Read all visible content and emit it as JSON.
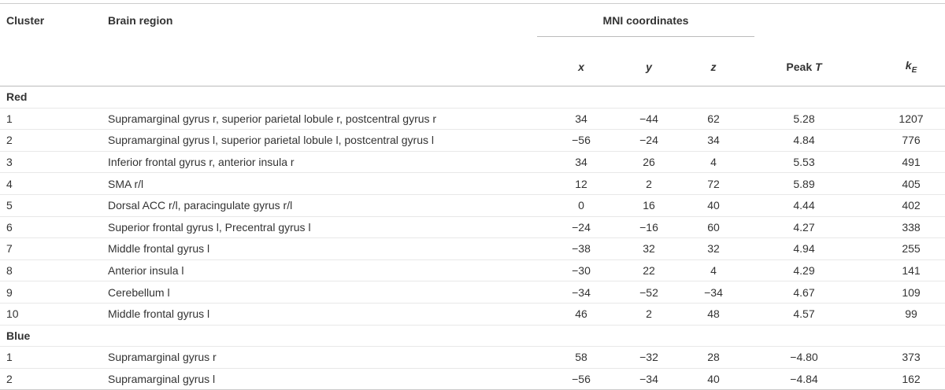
{
  "table": {
    "headers": {
      "cluster": "Cluster",
      "region": "Brain region",
      "mni": "MNI coordinates",
      "x": "x",
      "y": "y",
      "z": "z",
      "peak": [
        "Peak",
        "T"
      ],
      "ke": [
        "k",
        "E"
      ]
    },
    "groups": [
      {
        "name": "Red",
        "rows": [
          [
            "1",
            "Supramarginal gyrus r, superior parietal lobule r, postcentral gyrus r",
            "34",
            "−44",
            "62",
            "5.28",
            "1207"
          ],
          [
            "2",
            "Supramarginal gyrus l, superior parietal lobule l, postcentral gyrus l",
            "−56",
            "−24",
            "34",
            "4.84",
            "776"
          ],
          [
            "3",
            "Inferior frontal gyrus r, anterior insula r",
            "34",
            "26",
            "4",
            "5.53",
            "491"
          ],
          [
            "4",
            "SMA r/l",
            "12",
            "2",
            "72",
            "5.89",
            "405"
          ],
          [
            "5",
            "Dorsal ACC r/l, paracingulate gyrus r/l",
            "0",
            "16",
            "40",
            "4.44",
            "402"
          ],
          [
            "6",
            "Superior frontal gyrus l, Precentral gyrus l",
            "−24",
            "−16",
            "60",
            "4.27",
            "338"
          ],
          [
            "7",
            "Middle frontal gyrus l",
            "−38",
            "32",
            "32",
            "4.94",
            "255"
          ],
          [
            "8",
            "Anterior insula l",
            "−30",
            "22",
            "4",
            "4.29",
            "141"
          ],
          [
            "9",
            "Cerebellum l",
            "−34",
            "−52",
            "−34",
            "4.67",
            "109"
          ],
          [
            "10",
            "Middle frontal gyrus l",
            "46",
            "2",
            "48",
            "4.57",
            "99"
          ]
        ]
      },
      {
        "name": "Blue",
        "rows": [
          [
            "1",
            "Supramarginal gyrus r",
            "58",
            "−32",
            "28",
            "−4.80",
            "373"
          ],
          [
            "2",
            "Supramarginal gyrus l",
            "−56",
            "−34",
            "40",
            "−4.84",
            "162"
          ]
        ]
      }
    ]
  }
}
